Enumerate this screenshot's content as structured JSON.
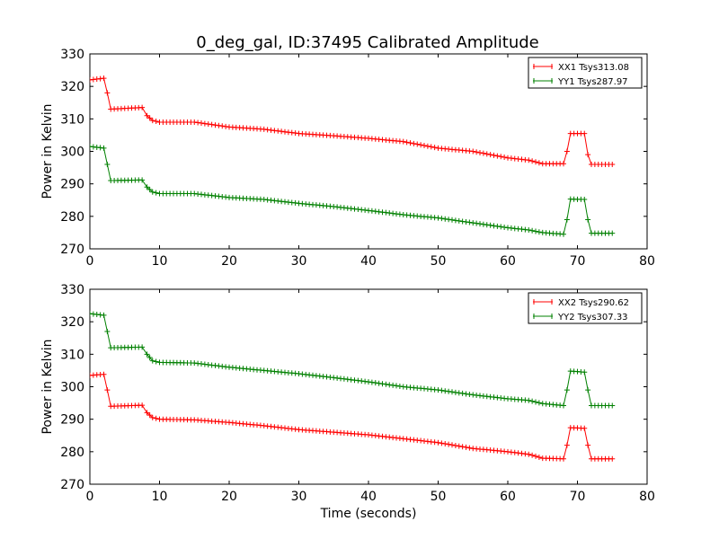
{
  "figure_title": "0_deg_gal, ID:37495 Calibrated Amplitude",
  "chart_data": [
    {
      "type": "line",
      "title": "0_deg_gal, ID:37495 Calibrated Amplitude",
      "xlabel": "",
      "ylabel": "Power in Kelvin",
      "xlim": [
        0,
        80
      ],
      "ylim": [
        270,
        330
      ],
      "xticks": [
        0,
        10,
        20,
        30,
        40,
        50,
        60,
        70,
        80
      ],
      "yticks": [
        270,
        280,
        290,
        300,
        310,
        320,
        330
      ],
      "grid": false,
      "legend_position": "top-right",
      "series": [
        {
          "name": "XX1 Tsys313.08",
          "color": "#ff0000",
          "marker": "+",
          "x": [
            0,
            2,
            2.5,
            3,
            7.5,
            8.2,
            9,
            10,
            15,
            20,
            25,
            30,
            35,
            40,
            45,
            50,
            55,
            60,
            63,
            65,
            68,
            68.5,
            69,
            71,
            71.5,
            72,
            75
          ],
          "y": [
            322,
            322.5,
            318,
            313,
            313.5,
            311,
            309.5,
            309,
            309,
            307.5,
            306.8,
            305.5,
            304.8,
            304,
            303,
            301,
            300,
            298,
            297.3,
            296.2,
            296.2,
            300,
            305.5,
            305.5,
            299,
            296,
            296
          ]
        },
        {
          "name": "YY1 Tsys287.97",
          "color": "#008000",
          "marker": "+",
          "x": [
            0,
            2,
            2.5,
            3,
            7.5,
            8.2,
            9,
            10,
            15,
            20,
            25,
            30,
            35,
            40,
            45,
            50,
            55,
            60,
            63,
            65,
            68,
            68.5,
            69,
            71,
            71.5,
            72,
            75
          ],
          "y": [
            301.5,
            301,
            296,
            291,
            291.2,
            289,
            287.5,
            287,
            287,
            285.8,
            285.2,
            284,
            283,
            281.8,
            280.5,
            279.5,
            278,
            276.5,
            275.8,
            275,
            274.5,
            279,
            285.3,
            285.2,
            279,
            274.8,
            274.8
          ]
        }
      ]
    },
    {
      "type": "line",
      "title": "",
      "xlabel": "Time (seconds)",
      "ylabel": "Power in Kelvin",
      "xlim": [
        0,
        80
      ],
      "ylim": [
        270,
        330
      ],
      "xticks": [
        0,
        10,
        20,
        30,
        40,
        50,
        60,
        70,
        80
      ],
      "yticks": [
        270,
        280,
        290,
        300,
        310,
        320,
        330
      ],
      "grid": false,
      "legend_position": "top-right",
      "series": [
        {
          "name": "XX2 Tsys290.62",
          "color": "#ff0000",
          "marker": "+",
          "x": [
            0,
            2,
            2.5,
            3,
            7.5,
            8.2,
            9,
            10,
            15,
            20,
            25,
            30,
            35,
            40,
            45,
            50,
            55,
            60,
            63,
            65,
            68,
            68.5,
            69,
            71,
            71.5,
            72,
            75
          ],
          "y": [
            303.5,
            303.8,
            299,
            294,
            294.3,
            292,
            290.5,
            290,
            289.8,
            289,
            288,
            286.8,
            286,
            285.2,
            284,
            282.8,
            281,
            280,
            279.2,
            278,
            277.8,
            282,
            287.4,
            287.2,
            282,
            277.8,
            277.8
          ]
        },
        {
          "name": "YY2 Tsys307.33",
          "color": "#008000",
          "marker": "+",
          "x": [
            0,
            2,
            2.5,
            3,
            7.5,
            8.2,
            9,
            10,
            15,
            20,
            25,
            30,
            35,
            40,
            45,
            50,
            55,
            60,
            63,
            65,
            68,
            68.5,
            69,
            71,
            71.5,
            72,
            75
          ],
          "y": [
            322.5,
            322,
            317,
            312,
            312.2,
            310,
            308,
            307.5,
            307.3,
            306,
            305,
            304,
            302.8,
            301.5,
            300,
            299,
            297.5,
            296.3,
            295.8,
            294.8,
            294.2,
            299,
            304.8,
            304.5,
            299,
            294.2,
            294.2
          ]
        }
      ]
    }
  ]
}
